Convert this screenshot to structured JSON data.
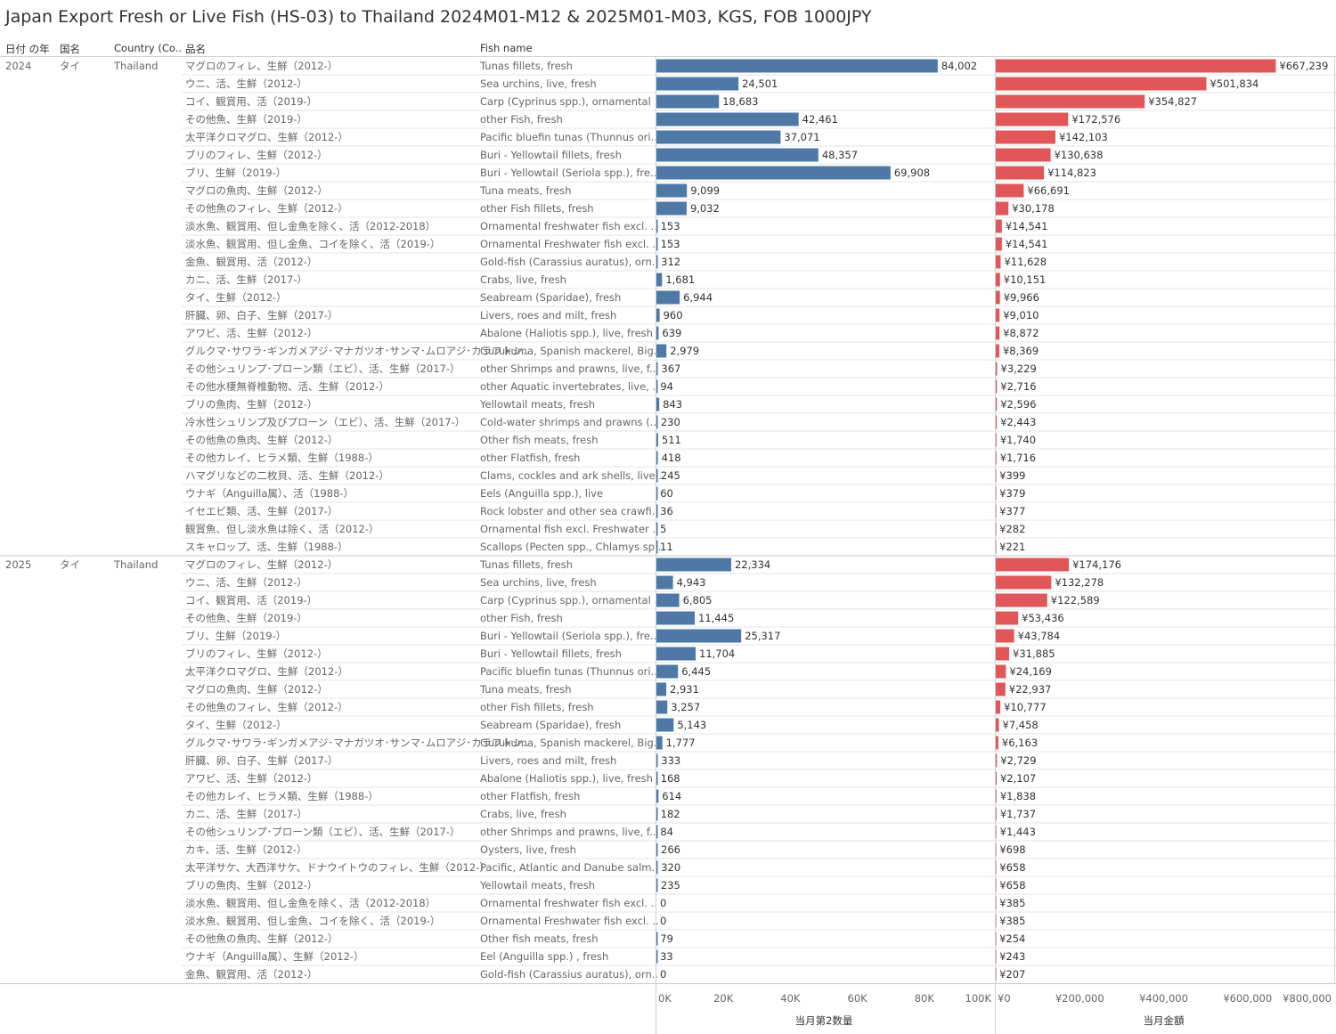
{
  "title": "Japan Export Fresh or Live Fish (HS-03) to Thailand 2024M01-M12 & 2025M01-M03, KGS, FOB 1000JPY",
  "headers": {
    "year": "日付 の年",
    "country_jp": "国名",
    "country_en": "Country (Co..",
    "item_jp": "品名",
    "fish_name": "Fish name"
  },
  "colors": {
    "qty_bar": "#4e79a7",
    "amt_bar": "#e15759"
  },
  "chart_data": [
    {
      "type": "bar",
      "orientation": "horizontal",
      "xlabel": "当月第2数量",
      "xlim": [
        0,
        100000
      ],
      "ticks": [
        "0K",
        "20K",
        "40K",
        "60K",
        "80K",
        "100K"
      ],
      "tick_values": [
        0,
        20000,
        40000,
        60000,
        80000,
        100000
      ]
    },
    {
      "type": "bar",
      "orientation": "horizontal",
      "xlabel": "当月金額",
      "xlim": [
        0,
        800000
      ],
      "ticks": [
        "¥0",
        "¥200,000",
        "¥400,000",
        "¥600,000",
        "¥800,000"
      ],
      "tick_values": [
        0,
        200000,
        400000,
        600000,
        800000
      ]
    }
  ],
  "groups": [
    {
      "year": "2024",
      "country_jp": "タイ",
      "country_en": "Thailand",
      "rows": [
        {
          "jp": "マグロのフィレ、生鮮（2012-）",
          "en": "Tunas fillets, fresh",
          "qty": 84002,
          "qty_label": "84,002",
          "amt": 667239,
          "amt_label": "¥667,239"
        },
        {
          "jp": "ウニ、活、生鮮（2012-）",
          "en": "Sea urchins, live, fresh",
          "qty": 24501,
          "qty_label": "24,501",
          "amt": 501834,
          "amt_label": "¥501,834"
        },
        {
          "jp": "コイ、観賞用、活（2019-）",
          "en": "Carp (Cyprinus spp.), ornamental ..",
          "qty": 18683,
          "qty_label": "18,683",
          "amt": 354827,
          "amt_label": "¥354,827"
        },
        {
          "jp": "その他魚、生鮮（2019-）",
          "en": "other Fish, fresh",
          "qty": 42461,
          "qty_label": "42,461",
          "amt": 172576,
          "amt_label": "¥172,576"
        },
        {
          "jp": "太平洋クロマグロ、生鮮（2012-）",
          "en": "Pacific bluefin tunas (Thunnus ori..",
          "qty": 37071,
          "qty_label": "37,071",
          "amt": 142103,
          "amt_label": "¥142,103"
        },
        {
          "jp": "ブリのフィレ、生鮮（2012-）",
          "en": "Buri - Yellowtail fillets, fresh",
          "qty": 48357,
          "qty_label": "48,357",
          "amt": 130638,
          "amt_label": "¥130,638"
        },
        {
          "jp": "ブリ、生鮮（2019-）",
          "en": "Buri - Yellowtail (Seriola spp.), fre..",
          "qty": 69908,
          "qty_label": "69,908",
          "amt": 114823,
          "amt_label": "¥114,823"
        },
        {
          "jp": "マグロの魚肉、生鮮（2012-）",
          "en": "Tuna meats, fresh",
          "qty": 9099,
          "qty_label": "9,099",
          "amt": 66691,
          "amt_label": "¥66,691"
        },
        {
          "jp": "その他魚のフィレ、生鮮（2012-）",
          "en": "other Fish fillets, fresh",
          "qty": 9032,
          "qty_label": "9,032",
          "amt": 30178,
          "amt_label": "¥30,178"
        },
        {
          "jp": "淡水魚、観賞用、但し金魚を除く、活（2012-2018）",
          "en": "Ornamental freshwater fish excl. ..",
          "qty": 153,
          "qty_label": "153",
          "amt": 14541,
          "amt_label": "¥14,541"
        },
        {
          "jp": "淡水魚、観賞用、但し金魚、コイを除く、活（2019-）",
          "en": "Ornamental Freshwater fish excl. ..",
          "qty": 153,
          "qty_label": "153",
          "amt": 14541,
          "amt_label": "¥14,541"
        },
        {
          "jp": "金魚、観賞用、活（2012-）",
          "en": "Gold-fish (Carassius auratus), orn..",
          "qty": 312,
          "qty_label": "312",
          "amt": 11628,
          "amt_label": "¥11,628"
        },
        {
          "jp": "カニ、活、生鮮（2017-）",
          "en": "Crabs, live, fresh",
          "qty": 1681,
          "qty_label": "1,681",
          "amt": 10151,
          "amt_label": "¥10,151"
        },
        {
          "jp": "タイ、生鮮（2012-）",
          "en": "Seabream (Sparidae), fresh",
          "qty": 6944,
          "qty_label": "6,944",
          "amt": 9966,
          "amt_label": "¥9,966"
        },
        {
          "jp": "肝臓、卵、白子、生鮮（2017-）",
          "en": "Livers, roes and milt, fresh",
          "qty": 960,
          "qty_label": "960",
          "amt": 9010,
          "amt_label": "¥9,010"
        },
        {
          "jp": "アワビ、活、生鮮（2012-）",
          "en": "Abalone (Haliotis spp.), live, fresh",
          "qty": 639,
          "qty_label": "639",
          "amt": 8872,
          "amt_label": "¥8,872"
        },
        {
          "jp": "グルクマ･サワラ･ギンガメアジ･マナガツオ･サンマ･ムロアジ･カラフトシ..",
          "en": "Gurukuma, Spanish mackerel, Big..",
          "qty": 2979,
          "qty_label": "2,979",
          "amt": 8369,
          "amt_label": "¥8,369"
        },
        {
          "jp": "その他シュリンプ･プローン類（エビ）、活、生鮮（2017-）",
          "en": "other Shrimps and prawns, live, f..",
          "qty": 367,
          "qty_label": "367",
          "amt": 3229,
          "amt_label": "¥3,229"
        },
        {
          "jp": "その他水棲無脊椎動物、活、生鮮（2012-）",
          "en": "other Aquatic invertebrates, live, ..",
          "qty": 94,
          "qty_label": "94",
          "amt": 2716,
          "amt_label": "¥2,716"
        },
        {
          "jp": "ブリの魚肉、生鮮（2012-）",
          "en": "Yellowtail meats, fresh",
          "qty": 843,
          "qty_label": "843",
          "amt": 2596,
          "amt_label": "¥2,596"
        },
        {
          "jp": "冷水性シュリンプ及びプローン（エビ）、活、生鮮（2017-）",
          "en": "Cold-water shrimps and prawns (..",
          "qty": 230,
          "qty_label": "230",
          "amt": 2443,
          "amt_label": "¥2,443"
        },
        {
          "jp": "その他魚の魚肉、生鮮（2012-）",
          "en": "Other fish meats, fresh",
          "qty": 511,
          "qty_label": "511",
          "amt": 1740,
          "amt_label": "¥1,740"
        },
        {
          "jp": "その他カレイ、ヒラメ類、生鮮（1988-）",
          "en": "other Flatfish, fresh",
          "qty": 418,
          "qty_label": "418",
          "amt": 1716,
          "amt_label": "¥1,716"
        },
        {
          "jp": "ハマグリなどの二枚貝、活、生鮮（2012-）",
          "en": "Clams, cockles and ark shells, live..",
          "qty": 245,
          "qty_label": "245",
          "amt": 399,
          "amt_label": "¥399"
        },
        {
          "jp": "ウナギ（Anguilla属）、活（1988-）",
          "en": "Eels (Anguilla spp.), live",
          "qty": 60,
          "qty_label": "60",
          "amt": 379,
          "amt_label": "¥379"
        },
        {
          "jp": "イセエビ類、活、生鮮（2017-）",
          "en": "Rock lobster and other sea crawfi..",
          "qty": 36,
          "qty_label": "36",
          "amt": 377,
          "amt_label": "¥377"
        },
        {
          "jp": "観賞魚、但し淡水魚は除く、活（2012-）",
          "en": "Ornamental fish excl. Freshwater ..",
          "qty": 5,
          "qty_label": "5",
          "amt": 282,
          "amt_label": "¥282"
        },
        {
          "jp": "スキャロップ、活、生鮮（1988-）",
          "en": "Scallops (Pecten spp., Chlamys sp..",
          "qty": 11,
          "qty_label": "11",
          "amt": 221,
          "amt_label": "¥221"
        }
      ]
    },
    {
      "year": "2025",
      "country_jp": "タイ",
      "country_en": "Thailand",
      "rows": [
        {
          "jp": "マグロのフィレ、生鮮（2012-）",
          "en": "Tunas fillets, fresh",
          "qty": 22334,
          "qty_label": "22,334",
          "amt": 174176,
          "amt_label": "¥174,176"
        },
        {
          "jp": "ウニ、活、生鮮（2012-）",
          "en": "Sea urchins, live, fresh",
          "qty": 4943,
          "qty_label": "4,943",
          "amt": 132278,
          "amt_label": "¥132,278"
        },
        {
          "jp": "コイ、観賞用、活（2019-）",
          "en": "Carp (Cyprinus spp.), ornamental ..",
          "qty": 6805,
          "qty_label": "6,805",
          "amt": 122589,
          "amt_label": "¥122,589"
        },
        {
          "jp": "その他魚、生鮮（2019-）",
          "en": "other Fish, fresh",
          "qty": 11445,
          "qty_label": "11,445",
          "amt": 53436,
          "amt_label": "¥53,436"
        },
        {
          "jp": "ブリ、生鮮（2019-）",
          "en": "Buri - Yellowtail (Seriola spp.), fre..",
          "qty": 25317,
          "qty_label": "25,317",
          "amt": 43784,
          "amt_label": "¥43,784"
        },
        {
          "jp": "ブリのフィレ、生鮮（2012-）",
          "en": "Buri - Yellowtail fillets, fresh",
          "qty": 11704,
          "qty_label": "11,704",
          "amt": 31885,
          "amt_label": "¥31,885"
        },
        {
          "jp": "太平洋クロマグロ、生鮮（2012-）",
          "en": "Pacific bluefin tunas (Thunnus ori..",
          "qty": 6445,
          "qty_label": "6,445",
          "amt": 24169,
          "amt_label": "¥24,169"
        },
        {
          "jp": "マグロの魚肉、生鮮（2012-）",
          "en": "Tuna meats, fresh",
          "qty": 2931,
          "qty_label": "2,931",
          "amt": 22937,
          "amt_label": "¥22,937"
        },
        {
          "jp": "その他魚のフィレ、生鮮（2012-）",
          "en": "other Fish fillets, fresh",
          "qty": 3257,
          "qty_label": "3,257",
          "amt": 10777,
          "amt_label": "¥10,777"
        },
        {
          "jp": "タイ、生鮮（2012-）",
          "en": "Seabream (Sparidae), fresh",
          "qty": 5143,
          "qty_label": "5,143",
          "amt": 7458,
          "amt_label": "¥7,458"
        },
        {
          "jp": "グルクマ･サワラ･ギンガメアジ･マナガツオ･サンマ･ムロアジ･カラフトシ..",
          "en": "Gurukuma, Spanish mackerel, Big..",
          "qty": 1777,
          "qty_label": "1,777",
          "amt": 6163,
          "amt_label": "¥6,163"
        },
        {
          "jp": "肝臓、卵、白子、生鮮（2017-）",
          "en": "Livers, roes and milt, fresh",
          "qty": 333,
          "qty_label": "333",
          "amt": 2729,
          "amt_label": "¥2,729"
        },
        {
          "jp": "アワビ、活、生鮮（2012-）",
          "en": "Abalone (Haliotis spp.), live, fresh",
          "qty": 168,
          "qty_label": "168",
          "amt": 2107,
          "amt_label": "¥2,107"
        },
        {
          "jp": "その他カレイ、ヒラメ類、生鮮（1988-）",
          "en": "other Flatfish, fresh",
          "qty": 614,
          "qty_label": "614",
          "amt": 1838,
          "amt_label": "¥1,838"
        },
        {
          "jp": "カニ、活、生鮮（2017-）",
          "en": "Crabs, live, fresh",
          "qty": 182,
          "qty_label": "182",
          "amt": 1737,
          "amt_label": "¥1,737"
        },
        {
          "jp": "その他シュリンプ･プローン類（エビ）、活、生鮮（2017-）",
          "en": "other Shrimps and prawns, live, f..",
          "qty": 84,
          "qty_label": "84",
          "amt": 1443,
          "amt_label": "¥1,443"
        },
        {
          "jp": "カキ、活、生鮮（2012-）",
          "en": "Oysters, live, fresh",
          "qty": 266,
          "qty_label": "266",
          "amt": 698,
          "amt_label": "¥698"
        },
        {
          "jp": "太平洋サケ、大西洋サケ、ドナウイトウのフィレ、生鮮（2012-）",
          "en": "Pacific, Atlantic and Danube salm..",
          "qty": 320,
          "qty_label": "320",
          "amt": 658,
          "amt_label": "¥658"
        },
        {
          "jp": "ブリの魚肉、生鮮（2012-）",
          "en": "Yellowtail meats, fresh",
          "qty": 235,
          "qty_label": "235",
          "amt": 658,
          "amt_label": "¥658"
        },
        {
          "jp": "淡水魚、観賞用、但し金魚を除く、活（2012-2018）",
          "en": "Ornamental freshwater fish excl. ..",
          "qty": 0,
          "qty_label": "0",
          "amt": 385,
          "amt_label": "¥385"
        },
        {
          "jp": "淡水魚、観賞用、但し金魚、コイを除く、活（2019-）",
          "en": "Ornamental Freshwater fish excl. ..",
          "qty": 0,
          "qty_label": "0",
          "amt": 385,
          "amt_label": "¥385"
        },
        {
          "jp": "その他魚の魚肉、生鮮（2012-）",
          "en": "Other fish meats, fresh",
          "qty": 79,
          "qty_label": "79",
          "amt": 254,
          "amt_label": "¥254"
        },
        {
          "jp": "ウナギ（Anguilla属）、生鮮（2012-）",
          "en": "Eel (Anguilla spp.) , fresh",
          "qty": 33,
          "qty_label": "33",
          "amt": 243,
          "amt_label": "¥243"
        },
        {
          "jp": "金魚、観賞用、活（2012-）",
          "en": "Gold-fish (Carassius auratus), orn..",
          "qty": 0,
          "qty_label": "0",
          "amt": 207,
          "amt_label": "¥207"
        }
      ]
    }
  ]
}
